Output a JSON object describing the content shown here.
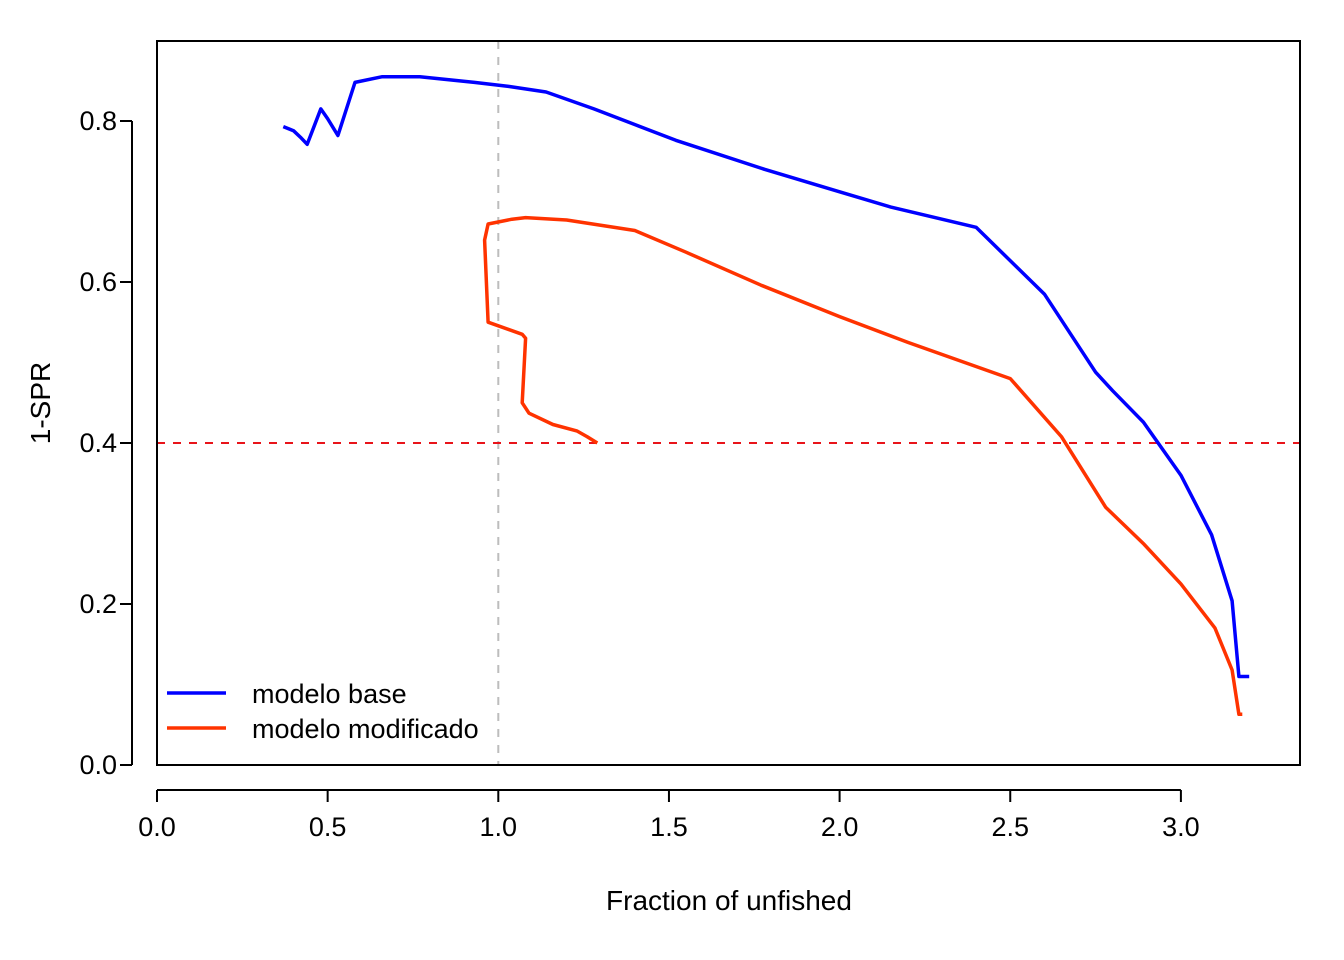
{
  "chart_data": {
    "type": "line",
    "xlabel": "Fraction of unfished",
    "ylabel": "1-SPR",
    "xlim": [
      0,
      3.35
    ],
    "ylim": [
      0,
      0.9
    ],
    "x_ticks": [
      "0.0",
      "0.5",
      "1.0",
      "1.5",
      "2.0",
      "2.5",
      "3.0"
    ],
    "y_ticks": [
      "0.0",
      "0.2",
      "0.4",
      "0.6",
      "0.8"
    ],
    "grid": false,
    "legend_position": "bottom-left",
    "reference_lines": [
      {
        "orientation": "vertical",
        "value": 1.0,
        "color": "#bdbdbd",
        "style": "dashed"
      },
      {
        "orientation": "horizontal",
        "value": 0.4,
        "color": "#e8141a",
        "style": "dashed"
      }
    ],
    "series": [
      {
        "name": "modelo base",
        "color": "#0000ff",
        "points": [
          [
            0.37,
            0.793
          ],
          [
            0.4,
            0.788
          ],
          [
            0.42,
            0.78
          ],
          [
            0.44,
            0.771
          ],
          [
            0.48,
            0.815
          ],
          [
            0.5,
            0.803
          ],
          [
            0.53,
            0.782
          ],
          [
            0.58,
            0.848
          ],
          [
            0.66,
            0.855
          ],
          [
            0.77,
            0.855
          ],
          [
            0.93,
            0.848
          ],
          [
            1.03,
            0.843
          ],
          [
            1.14,
            0.836
          ],
          [
            1.28,
            0.815
          ],
          [
            1.52,
            0.776
          ],
          [
            1.78,
            0.74
          ],
          [
            2.0,
            0.712
          ],
          [
            2.15,
            0.693
          ],
          [
            2.4,
            0.668
          ],
          [
            2.6,
            0.585
          ],
          [
            2.75,
            0.488
          ],
          [
            2.8,
            0.465
          ],
          [
            2.89,
            0.426
          ],
          [
            3.0,
            0.36
          ],
          [
            3.09,
            0.286
          ],
          [
            3.15,
            0.204
          ],
          [
            3.17,
            0.11
          ],
          [
            3.2,
            0.11
          ]
        ]
      },
      {
        "name": "modelo modificado",
        "color": "#ff3300",
        "points": [
          [
            1.29,
            0.4
          ],
          [
            1.26,
            0.408
          ],
          [
            1.23,
            0.415
          ],
          [
            1.16,
            0.423
          ],
          [
            1.09,
            0.437
          ],
          [
            1.07,
            0.45
          ],
          [
            1.08,
            0.53
          ],
          [
            1.07,
            0.535
          ],
          [
            0.97,
            0.55
          ],
          [
            0.96,
            0.652
          ],
          [
            0.97,
            0.672
          ],
          [
            1.04,
            0.678
          ],
          [
            1.08,
            0.68
          ],
          [
            1.2,
            0.677
          ],
          [
            1.4,
            0.664
          ],
          [
            1.55,
            0.637
          ],
          [
            1.77,
            0.596
          ],
          [
            2.0,
            0.557
          ],
          [
            2.2,
            0.525
          ],
          [
            2.5,
            0.48
          ],
          [
            2.65,
            0.408
          ],
          [
            2.78,
            0.32
          ],
          [
            2.89,
            0.275
          ],
          [
            3.0,
            0.225
          ],
          [
            3.1,
            0.17
          ],
          [
            3.15,
            0.118
          ],
          [
            3.17,
            0.063
          ],
          [
            3.18,
            0.063
          ]
        ]
      }
    ]
  }
}
